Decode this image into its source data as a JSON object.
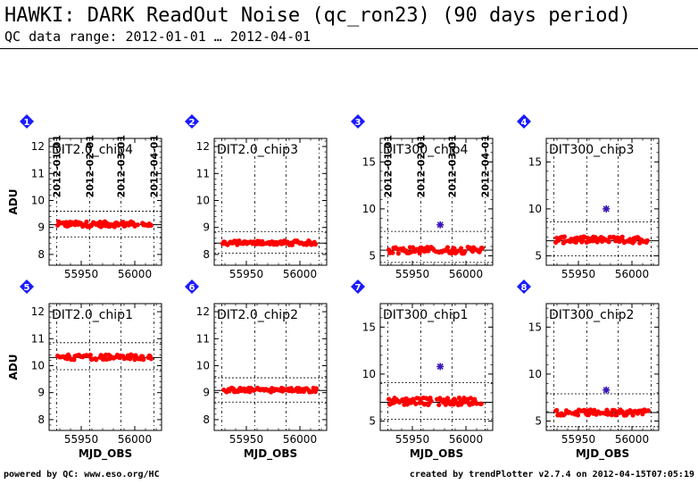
{
  "header": {
    "title": "HAWKI: DARK ReadOut Noise (qc_ron23) (90 days period)",
    "subtitle": "QC data range: 2012-01-01 … 2012-04-01"
  },
  "footer": {
    "left": "powered by QC: www.eso.org/HC",
    "right": "created by trendPlotter v2.7.4 on 2012-04-15T07:05:19"
  },
  "colors": {
    "data": "#ff0000",
    "outlier": "#3a17b8",
    "badge": "#1a1aff"
  },
  "date_labels": [
    "2012-01-01",
    "2012-02-01",
    "2012-03-01",
    "2012-04-01"
  ],
  "date_mjd": [
    55927,
    55958,
    55987,
    56018
  ],
  "chart_data": [
    {
      "type": "scatter",
      "badge": "1",
      "panel_label": "DIT2.0_chip4",
      "xlabel": "",
      "ylabel": "ADU",
      "xlim": [
        55920,
        56025
      ],
      "ylim": [
        7.6,
        12.3
      ],
      "xticks": [
        55950,
        56000
      ],
      "yticks": [
        8,
        9,
        10,
        11,
        12
      ],
      "median": 9.1,
      "band": [
        8.65,
        9.6
      ],
      "level": 9.12,
      "spread": 0.1,
      "outliers": []
    },
    {
      "type": "scatter",
      "badge": "2",
      "panel_label": "DIT2.0_chip3",
      "xlabel": "",
      "ylabel": "",
      "xlim": [
        55920,
        56025
      ],
      "ylim": [
        7.6,
        12.3
      ],
      "xticks": [
        55950,
        56000
      ],
      "yticks": [
        8,
        9,
        10,
        11,
        12
      ],
      "median": 8.42,
      "band": [
        8.05,
        8.85
      ],
      "level": 8.43,
      "spread": 0.08,
      "outliers": []
    },
    {
      "type": "scatter",
      "badge": "3",
      "panel_label": "DIT300_chip4",
      "xlabel": "",
      "ylabel": "",
      "xlim": [
        55920,
        56025
      ],
      "ylim": [
        4,
        17.5
      ],
      "xticks": [
        55950,
        56000
      ],
      "yticks": [
        5,
        10,
        15
      ],
      "median": 5.6,
      "band": [
        4.3,
        7.6
      ],
      "level": 5.6,
      "spread": 0.35,
      "outliers": [
        {
          "x": 55976,
          "y": 8.3
        }
      ]
    },
    {
      "type": "scatter",
      "badge": "4",
      "panel_label": "DIT300_chip3",
      "xlabel": "",
      "ylabel": "",
      "xlim": [
        55920,
        56025
      ],
      "ylim": [
        4,
        17.5
      ],
      "xticks": [
        55950,
        56000
      ],
      "yticks": [
        5,
        10,
        15
      ],
      "median": 6.6,
      "band": [
        5.0,
        8.6
      ],
      "level": 6.7,
      "spread": 0.35,
      "outliers": [
        {
          "x": 55976,
          "y": 10.0
        }
      ]
    },
    {
      "type": "scatter",
      "badge": "5",
      "panel_label": "DIT2.0_chip1",
      "xlabel": "MJD_OBS",
      "ylabel": "ADU",
      "xlim": [
        55920,
        56025
      ],
      "ylim": [
        7.6,
        12.3
      ],
      "xticks": [
        55950,
        56000
      ],
      "yticks": [
        8,
        9,
        10,
        11,
        12
      ],
      "median": 10.3,
      "band": [
        9.85,
        10.85
      ],
      "level": 10.32,
      "spread": 0.1,
      "outliers": []
    },
    {
      "type": "scatter",
      "badge": "6",
      "panel_label": "DIT2.0_chip2",
      "xlabel": "MJD_OBS",
      "ylabel": "",
      "xlim": [
        55920,
        56025
      ],
      "ylim": [
        7.6,
        12.3
      ],
      "xticks": [
        55950,
        56000
      ],
      "yticks": [
        8,
        9,
        10,
        11,
        12
      ],
      "median": 9.08,
      "band": [
        8.65,
        9.55
      ],
      "level": 9.1,
      "spread": 0.08,
      "outliers": []
    },
    {
      "type": "scatter",
      "badge": "7",
      "panel_label": "DIT300_chip1",
      "xlabel": "MJD_OBS",
      "ylabel": "",
      "xlim": [
        55920,
        56025
      ],
      "ylim": [
        4,
        17.5
      ],
      "xticks": [
        55950,
        56000
      ],
      "yticks": [
        5,
        10,
        15
      ],
      "median": 7.0,
      "band": [
        5.2,
        9.1
      ],
      "level": 7.1,
      "spread": 0.4,
      "outliers": [
        {
          "x": 55976,
          "y": 10.8
        }
      ]
    },
    {
      "type": "scatter",
      "badge": "8",
      "panel_label": "DIT300_chip2",
      "xlabel": "MJD_OBS",
      "ylabel": "",
      "xlim": [
        55920,
        56025
      ],
      "ylim": [
        4,
        17.5
      ],
      "xticks": [
        55950,
        56000
      ],
      "yticks": [
        5,
        10,
        15
      ],
      "median": 5.9,
      "band": [
        4.4,
        7.9
      ],
      "level": 5.9,
      "spread": 0.3,
      "outliers": [
        {
          "x": 55976,
          "y": 8.3
        }
      ]
    }
  ]
}
